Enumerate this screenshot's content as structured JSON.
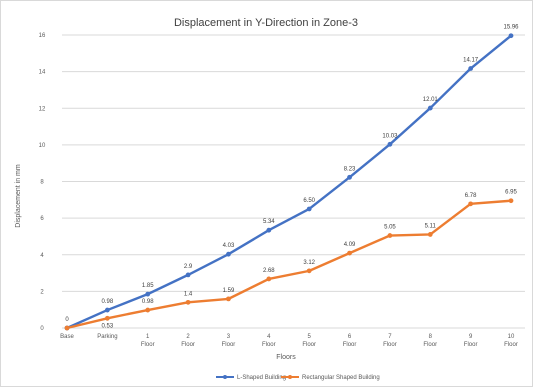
{
  "colors": {
    "series_1": "#4472c4",
    "series_2": "#ed7d31",
    "grid": "#d9d9d9",
    "text": "#595959"
  },
  "chart_data": {
    "type": "line",
    "title": "Displacement in Y-Direction in Zone-3",
    "xlabel": "Floors",
    "ylabel": "Displacement in mm",
    "ylim": [
      0,
      16
    ],
    "yticks": [
      0,
      2,
      4,
      6,
      8,
      10,
      12,
      14,
      16
    ],
    "grid": true,
    "legend_position": "bottom",
    "categories": [
      [
        "Base"
      ],
      [
        "Parking"
      ],
      [
        "1",
        "Floor"
      ],
      [
        "2",
        "Floor"
      ],
      [
        "3",
        "Floor"
      ],
      [
        "4",
        "Floor"
      ],
      [
        "5",
        "Floor"
      ],
      [
        "6",
        "Floor"
      ],
      [
        "7",
        "Floor"
      ],
      [
        "8",
        "Floor"
      ],
      [
        "9",
        "Floor"
      ],
      [
        "10",
        "Floor"
      ]
    ],
    "series": [
      {
        "name": "L-Shaped Building",
        "values": [
          0,
          0.98,
          1.85,
          2.9,
          4.03,
          5.34,
          6.5,
          8.23,
          10.03,
          12.01,
          14.17,
          15.96
        ],
        "labels": [
          "0",
          "0.98",
          "1.85",
          "2.9",
          "4.03",
          "5.34",
          "6.50",
          "8.23",
          "10.03",
          "12.01",
          "14.17",
          "15.96"
        ]
      },
      {
        "name": "Rectangular Shaped Building",
        "values": [
          0,
          0.53,
          0.98,
          1.4,
          1.59,
          2.68,
          3.12,
          4.09,
          5.05,
          5.11,
          6.78,
          6.95
        ],
        "labels": [
          "",
          "0.53",
          "0.98",
          "1.4",
          "1.59",
          "2.68",
          "3.12",
          "4.09",
          "5.05",
          "5.11",
          "6.78",
          "6.95"
        ]
      }
    ]
  }
}
